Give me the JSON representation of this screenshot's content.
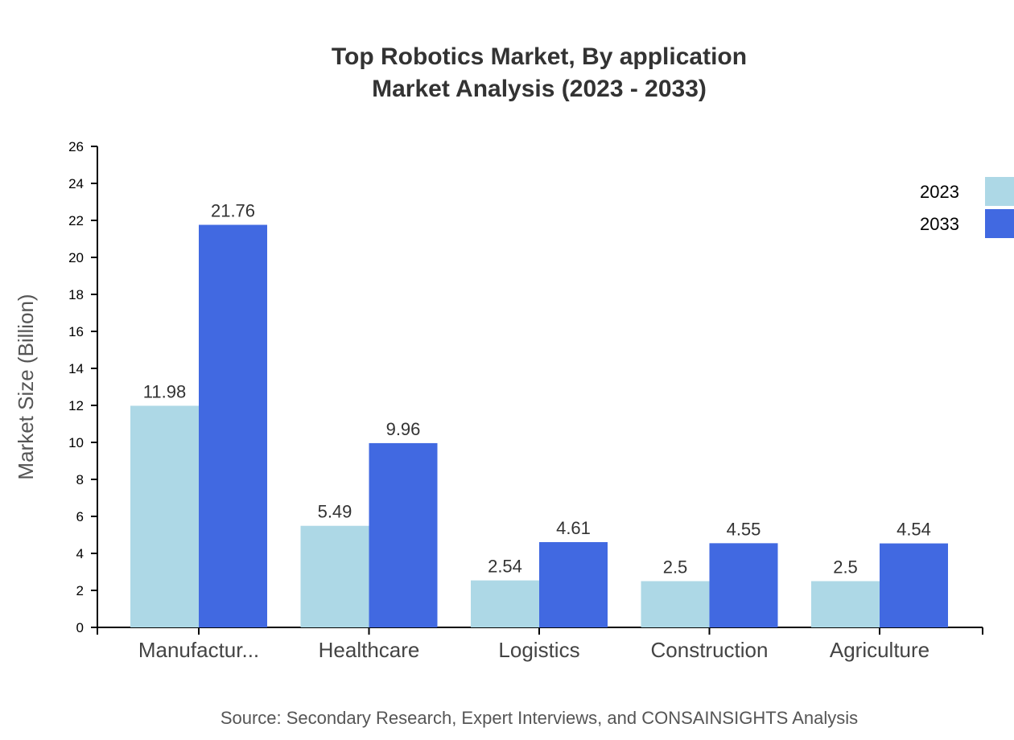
{
  "chart_data": {
    "type": "bar",
    "title": "Top Robotics Market, By application",
    "subtitle": "Market Analysis (2023 - 2033)",
    "xlabel": "",
    "ylabel": "Market Size (Billion)",
    "ylim": [
      0,
      26
    ],
    "yticks": [
      0,
      2,
      4,
      6,
      8,
      10,
      12,
      14,
      16,
      18,
      20,
      22,
      24,
      26
    ],
    "categories": [
      "Manufactur...",
      "Healthcare",
      "Logistics",
      "Construction",
      "Agriculture"
    ],
    "series": [
      {
        "name": "2023",
        "color": "#add8e6",
        "values": [
          11.98,
          5.49,
          2.54,
          2.5,
          2.5
        ]
      },
      {
        "name": "2033",
        "color": "#4169e1",
        "values": [
          21.76,
          9.96,
          4.61,
          4.55,
          4.54
        ]
      }
    ],
    "legend_position": "top-right",
    "grid": false,
    "source": "Source: Secondary Research, Expert Interviews, and CONSAINSIGHTS Analysis"
  }
}
